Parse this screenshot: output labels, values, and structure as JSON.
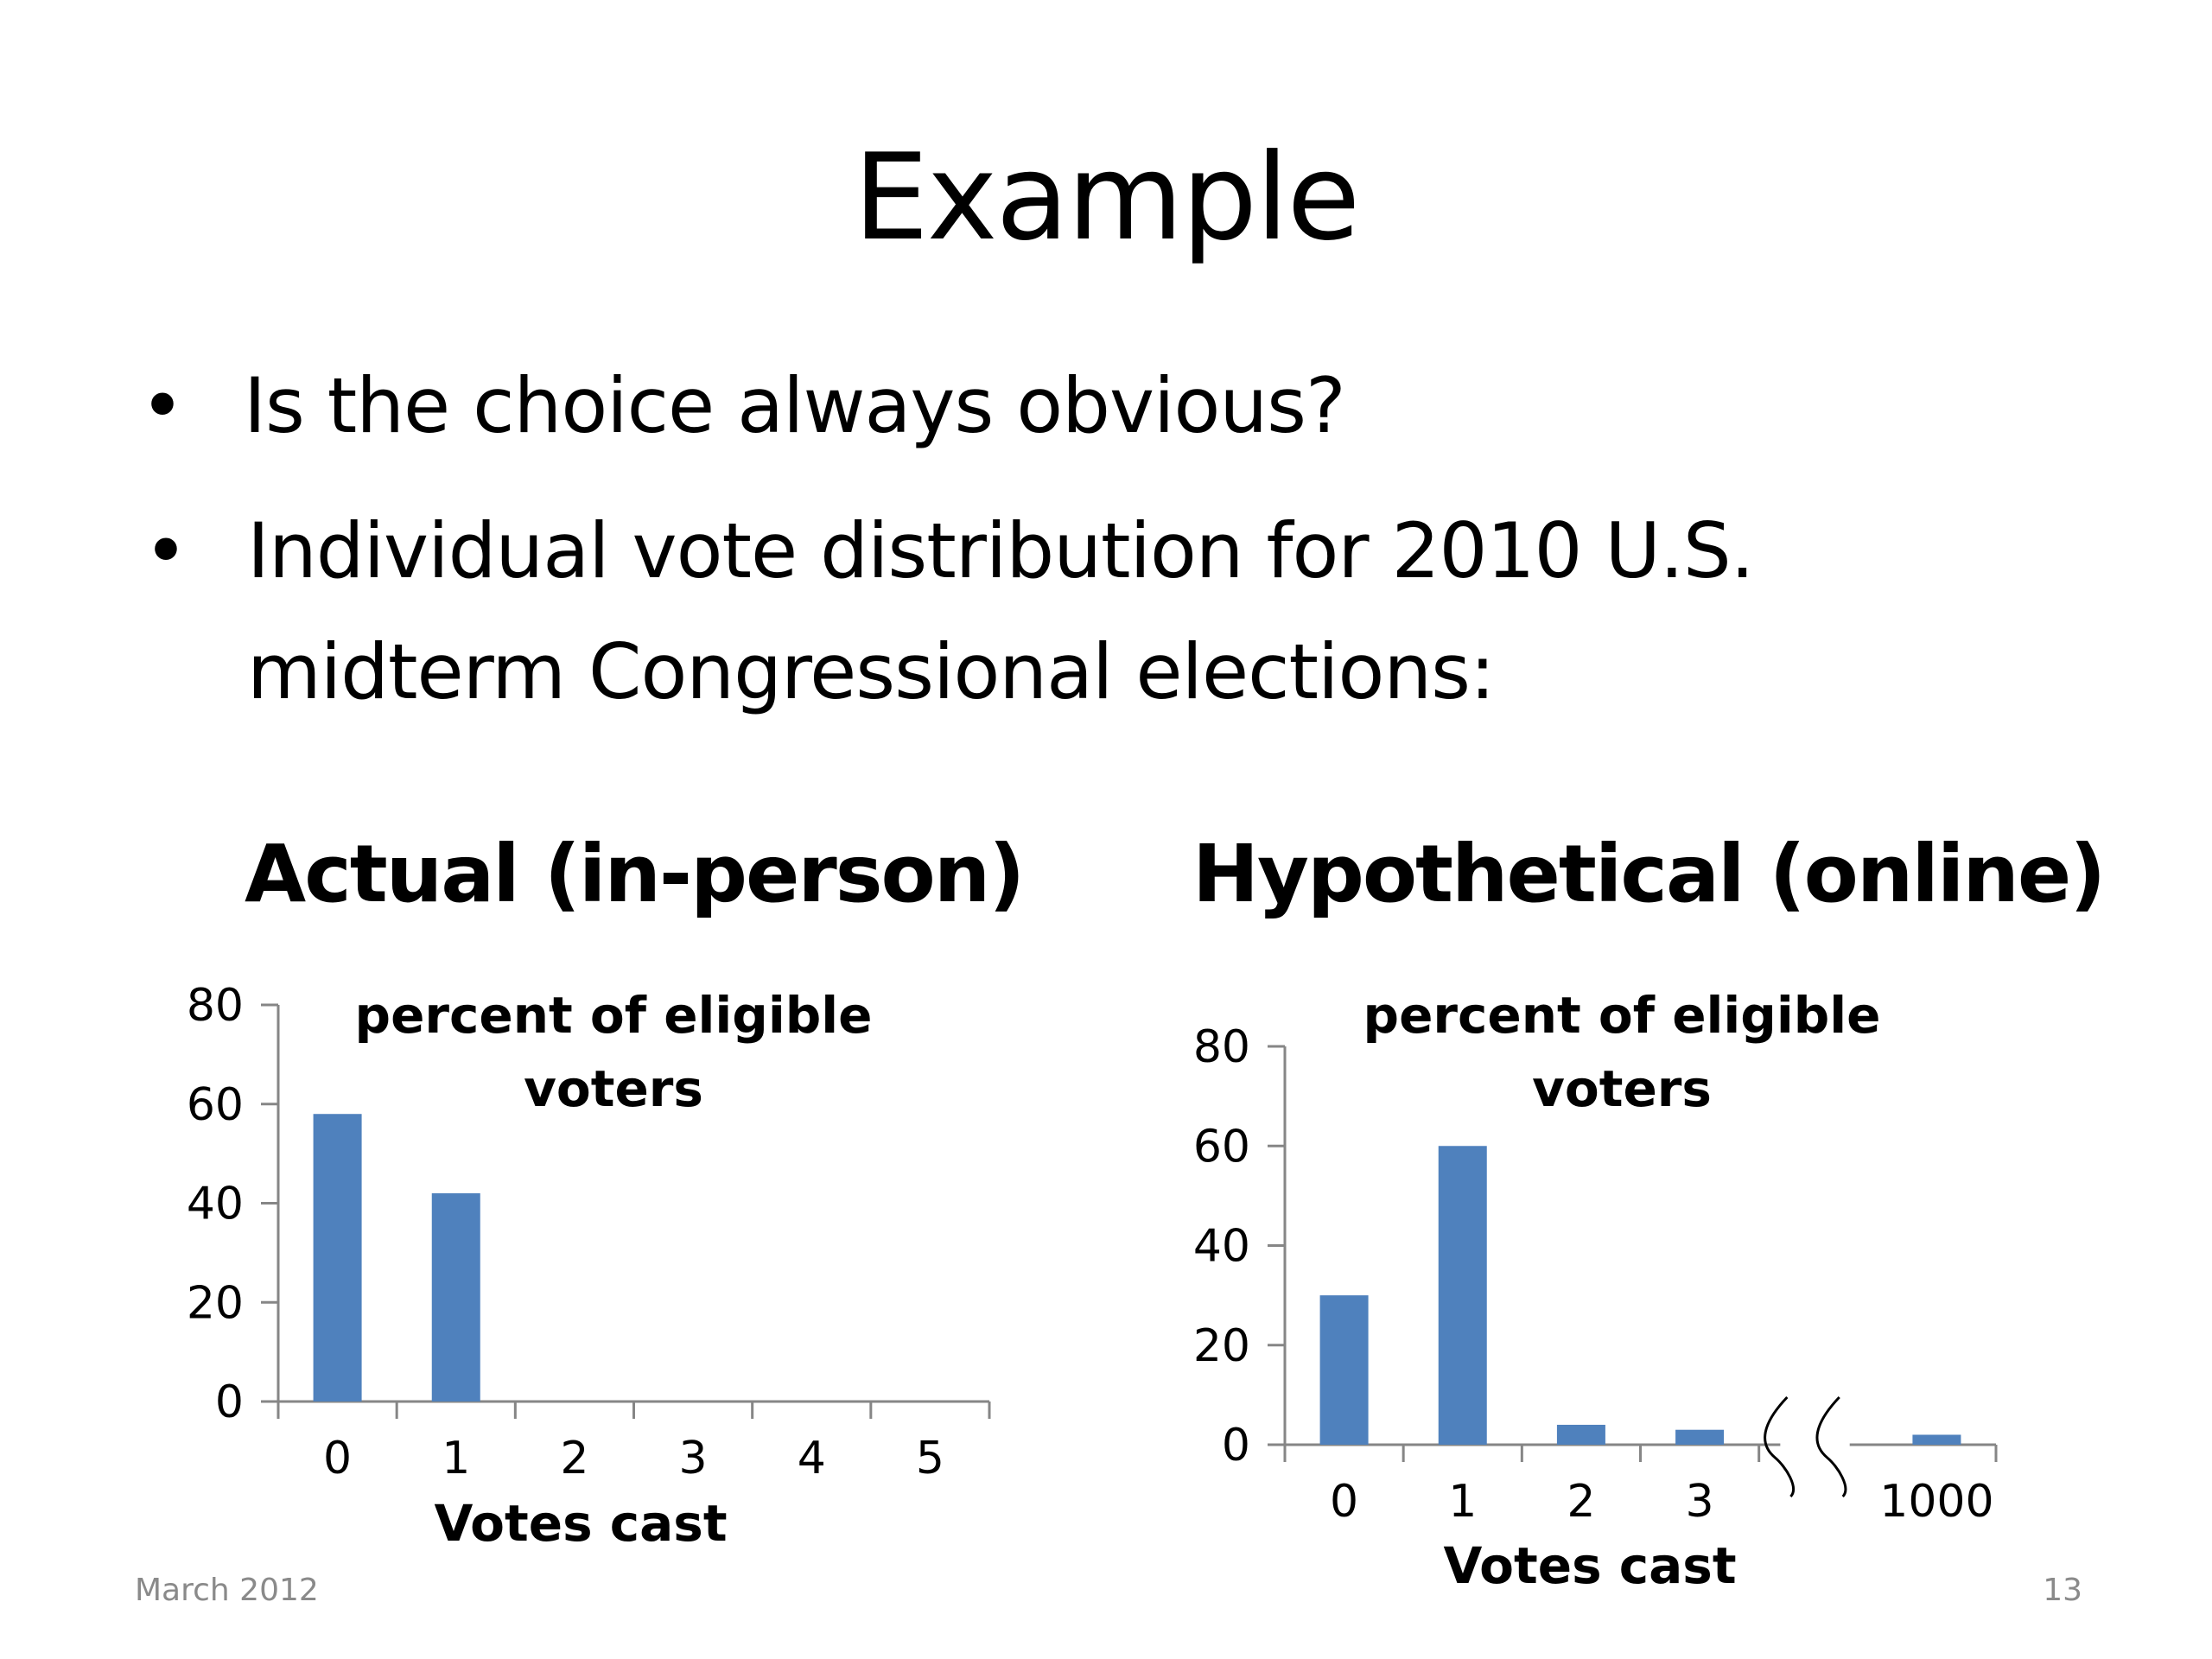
{
  "slide": {
    "title": "Example",
    "bullets": [
      "Is the choice always obvious?",
      "Individual vote distribution for 2010 U.S. midterm Congressional elections:"
    ],
    "bullet_marker": "•",
    "footer_left": "March 2012",
    "footer_right": "13"
  },
  "chart_data": [
    {
      "type": "bar",
      "title": "Actual (in-person)",
      "annotation": "percent of eligible voters",
      "xlabel": "Votes cast",
      "categories": [
        "0",
        "1",
        "2",
        "3",
        "4",
        "5"
      ],
      "values": [
        58,
        42,
        0,
        0,
        0,
        0
      ],
      "ylim": [
        0,
        80
      ],
      "yticks": [
        0,
        20,
        40,
        60,
        80
      ],
      "grid": false,
      "color": "#4f81bd"
    },
    {
      "type": "bar",
      "title": "Hypothetical (online)",
      "annotation": "percent of eligible voters",
      "xlabel": "Votes cast",
      "categories": [
        "0",
        "1",
        "2",
        "3",
        "1000"
      ],
      "values": [
        30,
        60,
        4,
        3,
        2
      ],
      "ylim": [
        0,
        80
      ],
      "yticks": [
        0,
        20,
        40,
        60,
        80
      ],
      "grid": false,
      "axis_break": true,
      "color": "#4f81bd"
    }
  ]
}
